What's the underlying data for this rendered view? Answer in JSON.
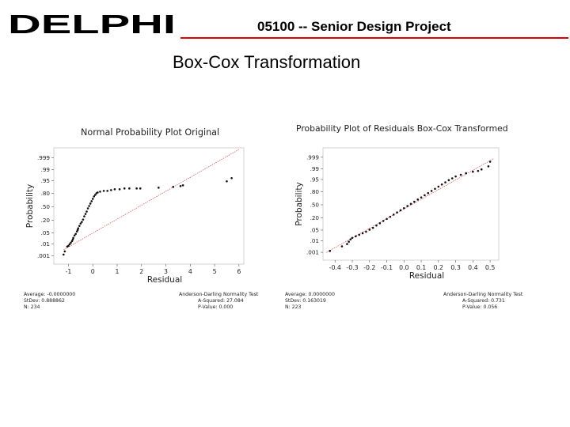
{
  "header": {
    "brand": "DELPHI",
    "project_title": "05100 -- Senior Design Project",
    "rule_color": "#e00000"
  },
  "slide": {
    "title": "Box-Cox Transformation"
  },
  "chart_data": [
    {
      "type": "scatter",
      "title": "Normal Probability Plot Original",
      "xlabel": "Residual",
      "ylabel": "Probability",
      "x_ticks": [
        "-1",
        "0",
        "1",
        "2",
        "3",
        "4",
        "5",
        "6"
      ],
      "x_tick_values": [
        -1,
        0,
        1,
        2,
        3,
        4,
        5,
        6
      ],
      "y_ticks": [
        ".999",
        ".99",
        ".95",
        ".80",
        ".50",
        ".20",
        ".05",
        ".01",
        ".001"
      ],
      "xlim": [
        -1.6,
        6.2
      ],
      "fit_line": [
        [
          -1.2,
          -2.7
        ],
        [
          6.0,
          3.6
        ]
      ],
      "points_x": [
        -1.2,
        -1.15,
        -1.05,
        -1.0,
        -0.95,
        -0.9,
        -0.85,
        -0.82,
        -0.8,
        -0.75,
        -0.7,
        -0.65,
        -0.62,
        -0.6,
        -0.55,
        -0.5,
        -0.45,
        -0.4,
        -0.35,
        -0.3,
        -0.25,
        -0.2,
        -0.15,
        -0.1,
        -0.05,
        0.0,
        0.05,
        0.1,
        0.15,
        0.2,
        0.3,
        0.45,
        0.6,
        0.75,
        0.9,
        1.1,
        1.3,
        1.5,
        1.8,
        1.95,
        2.7,
        3.3,
        3.6,
        3.7,
        5.5,
        5.7
      ],
      "points_z": [
        -3.0,
        -2.8,
        -2.5,
        -2.45,
        -2.35,
        -2.25,
        -2.15,
        -2.05,
        -1.95,
        -1.8,
        -1.7,
        -1.55,
        -1.45,
        -1.35,
        -1.2,
        -1.05,
        -0.95,
        -0.8,
        -0.6,
        -0.45,
        -0.3,
        -0.1,
        0.05,
        0.2,
        0.35,
        0.5,
        0.65,
        0.75,
        0.85,
        0.9,
        0.95,
        1.0,
        1.0,
        1.05,
        1.1,
        1.1,
        1.15,
        1.15,
        1.15,
        1.15,
        1.2,
        1.25,
        1.3,
        1.35,
        1.6,
        1.8
      ],
      "stats_left": [
        "Average: -0.0000000",
        "StDev: 0.888862",
        "N: 234"
      ],
      "stats_right": [
        "Anderson-Darling Normality Test",
        "A-Squared: 27.084",
        "P-Value:    0.000"
      ]
    },
    {
      "type": "scatter",
      "title": "Probability Plot of Residuals Box-Cox Transformed",
      "xlabel": "Residual",
      "ylabel": "Probability",
      "x_ticks": [
        "-0.4",
        "-0.3",
        "-0.2",
        "-0.1",
        "0.0",
        "0.1",
        "0.2",
        "0.3",
        "0.4",
        "0.5"
      ],
      "x_tick_values": [
        -0.4,
        -0.3,
        -0.2,
        -0.1,
        0.0,
        0.1,
        0.2,
        0.3,
        0.4,
        0.5
      ],
      "y_ticks": [
        ".999",
        ".99",
        ".95",
        ".80",
        ".50",
        ".20",
        ".05",
        ".01",
        ".001"
      ],
      "xlim": [
        -0.47,
        0.55
      ],
      "fit_line": [
        [
          -0.45,
          -3.1
        ],
        [
          0.52,
          3.0
        ]
      ],
      "points_x": [
        -0.43,
        -0.36,
        -0.33,
        -0.32,
        -0.31,
        -0.3,
        -0.28,
        -0.26,
        -0.24,
        -0.22,
        -0.2,
        -0.18,
        -0.16,
        -0.14,
        -0.12,
        -0.1,
        -0.08,
        -0.06,
        -0.04,
        -0.02,
        0.0,
        0.02,
        0.04,
        0.06,
        0.08,
        0.1,
        0.12,
        0.14,
        0.16,
        0.18,
        0.2,
        0.22,
        0.24,
        0.26,
        0.28,
        0.3,
        0.33,
        0.36,
        0.4,
        0.43,
        0.45,
        0.49,
        0.5
      ],
      "points_z": [
        -3.0,
        -2.7,
        -2.55,
        -2.4,
        -2.25,
        -2.15,
        -2.05,
        -1.95,
        -1.85,
        -1.75,
        -1.62,
        -1.5,
        -1.35,
        -1.2,
        -1.05,
        -0.92,
        -0.78,
        -0.64,
        -0.5,
        -0.36,
        -0.22,
        -0.08,
        0.06,
        0.2,
        0.34,
        0.48,
        0.62,
        0.76,
        0.9,
        1.04,
        1.18,
        1.32,
        1.46,
        1.6,
        1.72,
        1.84,
        1.95,
        2.05,
        2.15,
        2.2,
        2.3,
        2.5,
        2.8
      ],
      "stats_left": [
        "Average: 0.0000000",
        "StDev: 0.163019",
        "N: 223"
      ],
      "stats_right": [
        "Anderson-Darling Normality Test",
        "A-Squared: 0.731",
        "P-Value:    0.056"
      ]
    }
  ]
}
